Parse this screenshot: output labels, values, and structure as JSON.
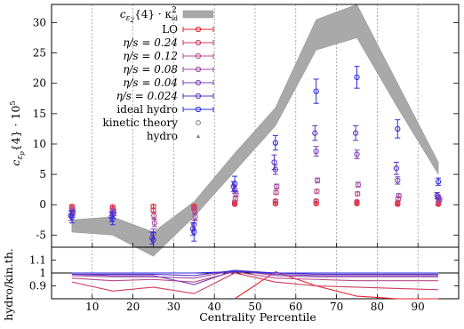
{
  "chart_data": [
    {
      "type": "scatter",
      "xlabel": "Centrality Percentile",
      "ylabel_main": "c",
      "ylabel_sub": "ε",
      "ylabel_subsub": "p",
      "ylabel_rest": "{4} · 10",
      "ylabel_exp": "5",
      "xlim": [
        0,
        100
      ],
      "ylim": [
        -7,
        33
      ],
      "xticks": [
        10,
        20,
        30,
        40,
        50,
        60,
        70,
        80,
        90
      ],
      "yticks": [
        -5,
        0,
        5,
        10,
        15,
        20,
        25,
        30
      ],
      "grid": "vertical dashed lines at x ticks",
      "legend_position": "top-left",
      "band": {
        "label_main": "c",
        "label_sub": "ε",
        "label_subsub": "2",
        "label_rest": "{4} · κ",
        "label_exp": "2",
        "label_sub2": "id",
        "color": "#a9a9a9",
        "x": [
          5,
          15,
          25,
          35,
          45,
          55,
          65,
          75,
          85,
          95
        ],
        "upper": [
          -2.5,
          -2.0,
          -4.5,
          0.5,
          8.5,
          16.0,
          30.5,
          33.0,
          20.0,
          7.0
        ],
        "lower": [
          -4.5,
          -5.0,
          -8.5,
          -2.0,
          5.5,
          13.0,
          25.5,
          27.5,
          16.0,
          5.0
        ]
      },
      "series": [
        {
          "name": "LO",
          "color": "#e8242e",
          "offset": 0.0,
          "y": [
            -0.3,
            -0.4,
            -0.3,
            -0.3,
            0.1,
            0.2,
            0.2,
            0.2,
            0.1,
            0.1
          ],
          "err": [
            0.3,
            0.3,
            0.3,
            0.3,
            0.2,
            0.2,
            0.2,
            0.2,
            0.2,
            0.2
          ]
        },
        {
          "name": "η/s = 0.24",
          "color": "#cf3b60",
          "offset": 0.0,
          "y": [
            -0.6,
            -0.7,
            -0.9,
            -0.6,
            0.4,
            0.6,
            0.6,
            0.5,
            0.3,
            0.3
          ],
          "err": [
            0.3,
            0.3,
            0.3,
            0.3,
            0.2,
            0.2,
            0.2,
            0.2,
            0.2,
            0.2
          ]
        },
        {
          "name": "η/s = 0.12",
          "color": "#b84c88",
          "offset": 0.15,
          "y": [
            -0.9,
            -1.0,
            -1.8,
            -1.0,
            1.0,
            2.0,
            2.2,
            1.8,
            1.0,
            0.6
          ],
          "err": [
            0.4,
            0.4,
            0.5,
            0.5,
            0.3,
            0.3,
            0.3,
            0.3,
            0.3,
            0.3
          ]
        },
        {
          "name": "η/s = 0.08",
          "color": "#9b4aa6",
          "offset": 0.3,
          "y": [
            -1.2,
            -1.3,
            -3.0,
            -2.0,
            1.8,
            3.0,
            4.0,
            3.3,
            1.5,
            0.9
          ],
          "err": [
            0.5,
            0.5,
            0.6,
            0.6,
            0.4,
            0.4,
            0.4,
            0.4,
            0.3,
            0.3
          ]
        },
        {
          "name": "η/s = 0.04",
          "color": "#7b3fb8",
          "offset": 0.0,
          "y": [
            -1.5,
            -1.6,
            -4.8,
            -3.3,
            2.5,
            5.8,
            8.8,
            8.3,
            4.0,
            1.2
          ],
          "err": [
            0.6,
            0.6,
            0.8,
            0.8,
            0.6,
            0.8,
            0.8,
            0.7,
            0.6,
            0.4
          ]
        },
        {
          "name": "η/s = 0.024",
          "color": "#5a36c4",
          "offset": -0.3,
          "y": [
            -1.8,
            -2.0,
            -5.5,
            -4.0,
            3.0,
            7.0,
            11.8,
            11.8,
            6.0,
            1.5
          ],
          "err": [
            0.8,
            0.8,
            1.0,
            1.0,
            0.8,
            1.2,
            1.2,
            1.2,
            1.0,
            0.5
          ]
        },
        {
          "name": "ideal hydro",
          "color": "#2e2ee0",
          "offset": 0.0,
          "y": [
            -2.0,
            -2.3,
            -5.8,
            -4.5,
            3.5,
            10.2,
            18.7,
            21.0,
            12.5,
            3.8
          ],
          "err": [
            1.0,
            1.0,
            1.2,
            1.5,
            1.2,
            1.2,
            2.0,
            1.8,
            1.5,
            0.6
          ]
        }
      ],
      "legend_extra": [
        {
          "name": "kinetic theory",
          "marker": "circle"
        },
        {
          "name": "hydro",
          "marker": "triangle"
        }
      ]
    },
    {
      "type": "line",
      "ylabel": "hydro/kin.th.",
      "ylim": [
        0.8,
        1.2
      ],
      "yticks": [
        0.9,
        1,
        1.1
      ],
      "x": [
        5,
        15,
        25,
        35,
        45,
        55,
        65,
        75,
        85,
        95
      ],
      "series": [
        {
          "color": "#e8242e",
          "values": [
            null,
            null,
            null,
            null,
            0.78,
            1.01,
            0.9,
            0.82,
            0.78,
            0.78
          ]
        },
        {
          "color": "#cf3b60",
          "values": [
            0.93,
            0.86,
            0.89,
            0.84,
            1.0,
            0.93,
            0.9,
            0.89,
            0.88,
            0.87
          ]
        },
        {
          "color": "#b84c88",
          "values": [
            0.96,
            0.94,
            0.95,
            0.93,
            1.01,
            0.96,
            0.95,
            0.94,
            0.94,
            0.94
          ]
        },
        {
          "color": "#9b4aa6",
          "values": [
            0.98,
            0.97,
            0.97,
            0.96,
            1.02,
            0.98,
            0.97,
            0.97,
            0.97,
            0.97
          ]
        },
        {
          "color": "#7b3fb8",
          "values": [
            0.99,
            0.98,
            0.98,
            0.91,
            1.02,
            0.99,
            0.98,
            0.98,
            0.98,
            0.98
          ]
        },
        {
          "color": "#5a36c4",
          "values": [
            0.99,
            0.99,
            0.99,
            0.98,
            1.02,
            1.0,
            0.99,
            0.99,
            0.99,
            0.99
          ]
        },
        {
          "color": "#2e2ee0",
          "values": [
            1.0,
            1.0,
            1.0,
            1.0,
            1.01,
            1.0,
            1.0,
            1.0,
            1.0,
            1.0
          ]
        }
      ]
    }
  ]
}
